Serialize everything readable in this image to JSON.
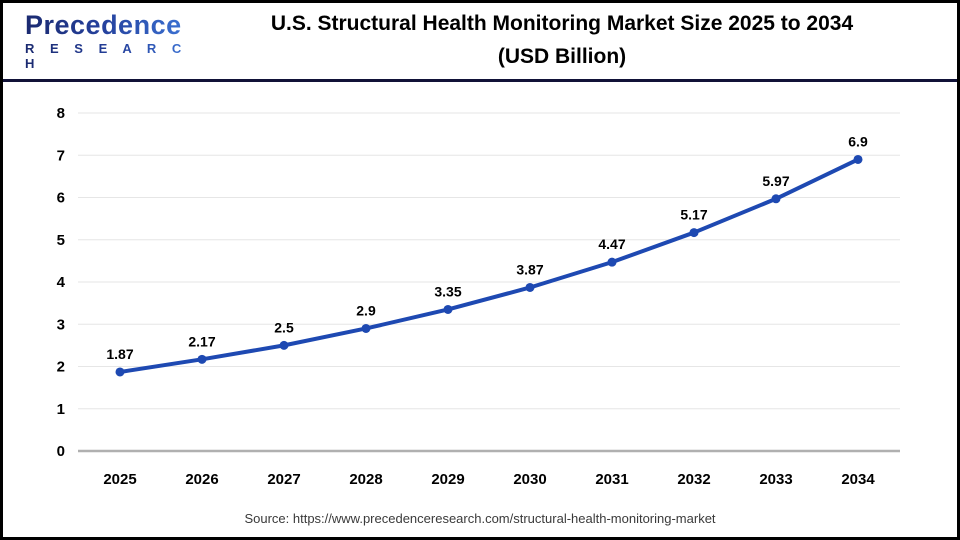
{
  "header": {
    "logo_brand": "Precedence",
    "logo_sub": "R E S E A R C H",
    "title_line1": "U.S. Structural Health Monitoring Market Size 2025 to 2034",
    "title_line2": "(USD Billion)"
  },
  "chart_data": {
    "type": "line",
    "title": "U.S. Structural Health Monitoring Market Size 2025 to 2034 (USD Billion)",
    "categories": [
      "2025",
      "2026",
      "2027",
      "2028",
      "2029",
      "2030",
      "2031",
      "2032",
      "2033",
      "2034"
    ],
    "series": [
      {
        "name": "U.S. Structural Health Monitoring Market Size (USD Billion)",
        "values": [
          1.87,
          2.17,
          2.5,
          2.9,
          3.35,
          3.87,
          4.47,
          5.17,
          5.97,
          6.9
        ],
        "point_labels": [
          "1.87",
          "2.17",
          "2.5",
          "2.9",
          "3.35",
          "3.87",
          "4.47",
          "5.17",
          "5.97",
          "6.9"
        ]
      }
    ],
    "xlabel": "",
    "ylabel": "",
    "ylim": [
      0,
      8
    ],
    "ytick_step": 1,
    "ytick_labels": [
      "0",
      "1",
      "2",
      "3",
      "4",
      "5",
      "6",
      "7",
      "8"
    ],
    "grid": true,
    "legend": "none",
    "colors": {
      "line": "#1e49b2",
      "marker": "#1e49b2",
      "gridline": "#e6e6e6",
      "zero_axis": "#b0b0b0",
      "tick_label": "#000000",
      "data_label": "#000000"
    }
  },
  "footer": {
    "source": "Source: https://www.precedenceresearch.com/structural-health-monitoring-market"
  }
}
